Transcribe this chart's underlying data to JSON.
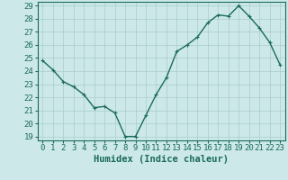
{
  "x": [
    0,
    1,
    2,
    3,
    4,
    5,
    6,
    7,
    8,
    9,
    10,
    11,
    12,
    13,
    14,
    15,
    16,
    17,
    18,
    19,
    20,
    21,
    22,
    23
  ],
  "y": [
    24.8,
    24.1,
    23.2,
    22.8,
    22.2,
    21.2,
    21.3,
    20.8,
    19.0,
    19.0,
    20.6,
    22.2,
    23.5,
    25.5,
    26.0,
    26.6,
    27.7,
    28.3,
    28.2,
    29.0,
    28.2,
    27.3,
    26.2,
    24.5
  ],
  "line_color": "#1a6b5a",
  "marker": "+",
  "marker_size": 3.5,
  "bg_color": "#cce8e8",
  "grid_color": "#aacccc",
  "xlabel": "Humidex (Indice chaleur)",
  "xlim": [
    -0.5,
    23.5
  ],
  "ylim_min": 18.7,
  "ylim_max": 29.3,
  "yticks": [
    19,
    20,
    21,
    22,
    23,
    24,
    25,
    26,
    27,
    28,
    29
  ],
  "xticks": [
    0,
    1,
    2,
    3,
    4,
    5,
    6,
    7,
    8,
    9,
    10,
    11,
    12,
    13,
    14,
    15,
    16,
    17,
    18,
    19,
    20,
    21,
    22,
    23
  ],
  "xlabel_fontsize": 7.5,
  "tick_fontsize": 6.5,
  "linewidth": 1.0
}
